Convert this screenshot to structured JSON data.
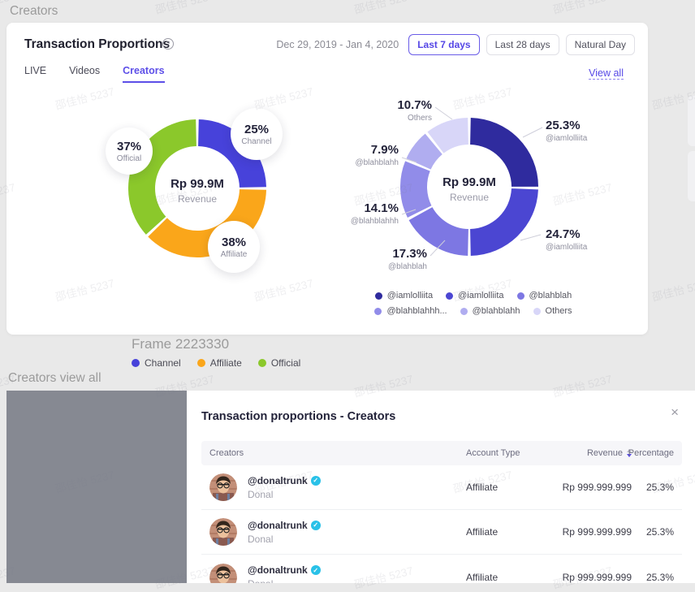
{
  "page": {
    "heading": "Creators",
    "frame_label": "Frame 2223330",
    "section_heading": "Creators view all"
  },
  "watermark": {
    "text": "邵佳怡 5237"
  },
  "card": {
    "title": "Transaction Proportions",
    "help": "?",
    "date_range": "Dec 29, 2019 - Jan 4, 2020",
    "range_buttons": [
      {
        "label": "Last 7 days",
        "active": true
      },
      {
        "label": "Last 28 days",
        "active": false
      },
      {
        "label": "Natural Day",
        "active": false
      }
    ],
    "tabs": [
      {
        "label": "LIVE",
        "active": false
      },
      {
        "label": "Videos",
        "active": false
      },
      {
        "label": "Creators",
        "active": true
      }
    ],
    "view_all": "View all"
  },
  "chart_data": [
    {
      "type": "pie",
      "subtype": "donut",
      "center": {
        "value": "Rp 99.9M",
        "label": "Revenue"
      },
      "start_angle": "top",
      "direction": "clockwise",
      "segments": [
        {
          "label": "Channel",
          "value": 25,
          "pct": "25%",
          "color": "#4742da"
        },
        {
          "label": "Affiliate",
          "value": 38,
          "pct": "38%",
          "color": "#faa61a"
        },
        {
          "label": "Official",
          "value": 37,
          "pct": "37%",
          "color": "#8bc82b"
        }
      ]
    },
    {
      "type": "pie",
      "subtype": "donut",
      "center": {
        "value": "Rp 99.9M",
        "label": "Revenue"
      },
      "start_angle": "top",
      "direction": "clockwise",
      "legend_position": "bottom",
      "segments": [
        {
          "label": "@iamlolliita",
          "legend_label": "@iamlolliita",
          "value": 25.3,
          "pct": "25.3%",
          "color": "#2f2b9e"
        },
        {
          "label": "@iamlolliita",
          "legend_label": "@iamlolliita",
          "value": 24.7,
          "pct": "24.7%",
          "color": "#4b46d2"
        },
        {
          "label": "@blahblah",
          "legend_label": "@blahblah",
          "value": 17.3,
          "pct": "17.3%",
          "color": "#7d77e3"
        },
        {
          "label": "@blahblahhh",
          "legend_label": "@blahblahhh...",
          "value": 14.1,
          "pct": "14.1%",
          "color": "#918ce9"
        },
        {
          "label": "@blahblahh",
          "legend_label": "@blahblahh",
          "value": 7.9,
          "pct": "7.9%",
          "color": "#b0adf0"
        },
        {
          "label": "Others",
          "legend_label": "Others",
          "value": 10.7,
          "pct": "10.7%",
          "color": "#d8d6f8"
        }
      ]
    }
  ],
  "frame_legend": [
    {
      "label": "Channel",
      "color": "#4742da"
    },
    {
      "label": "Affiliate",
      "color": "#faa61a"
    },
    {
      "label": "Official",
      "color": "#8bc82b"
    }
  ],
  "modal": {
    "title": "Transaction proportions - Creators",
    "close": "×",
    "table": {
      "headers": [
        "Creators",
        "Account Type",
        "Revenue",
        "Percentage"
      ],
      "rows": [
        {
          "handle": "@donaltrunk",
          "name": "Donal",
          "account_type": "Affiliate",
          "revenue": "Rp 999.999.999",
          "percentage": "25.3%"
        },
        {
          "handle": "@donaltrunk",
          "name": "Donal",
          "account_type": "Affiliate",
          "revenue": "Rp 999.999.999",
          "percentage": "25.3%"
        },
        {
          "handle": "@donaltrunk",
          "name": "Donal",
          "account_type": "Affiliate",
          "revenue": "Rp 999.999.999",
          "percentage": "25.3%"
        }
      ]
    }
  }
}
